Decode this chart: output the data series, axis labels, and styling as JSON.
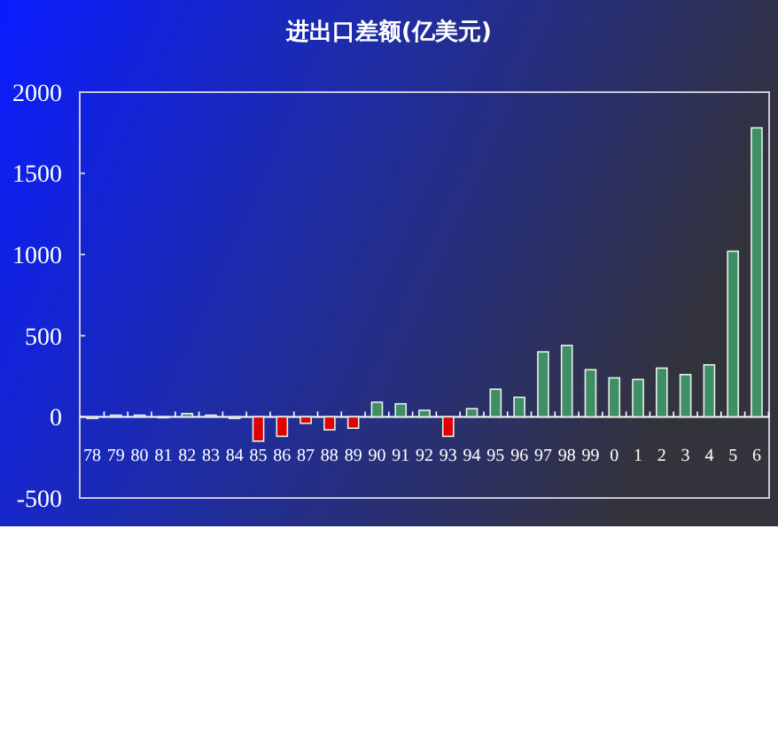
{
  "chart_data": {
    "type": "bar",
    "title": "进出口差额(亿美元)",
    "categories": [
      "78",
      "79",
      "80",
      "81",
      "82",
      "83",
      "84",
      "85",
      "86",
      "87",
      "88",
      "89",
      "90",
      "91",
      "92",
      "93",
      "94",
      "95",
      "96",
      "97",
      "98",
      "99",
      "0",
      "1",
      "2",
      "3",
      "4",
      "5",
      "6"
    ],
    "values": [
      -10,
      10,
      10,
      0,
      20,
      10,
      -10,
      -150,
      -120,
      -40,
      -80,
      -70,
      90,
      80,
      40,
      -120,
      50,
      170,
      120,
      400,
      440,
      290,
      240,
      230,
      300,
      260,
      320,
      1020,
      1780
    ],
    "colors": [
      "#3f8f66",
      "#3f8f66",
      "#3f8f66",
      "#3f8f66",
      "#3f8f66",
      "#3f8f66",
      "#3f8f66",
      "#e00000",
      "#e00000",
      "#e00000",
      "#e00000",
      "#e00000",
      "#3f8f66",
      "#3f8f66",
      "#3f8f66",
      "#e00000",
      "#3f8f66",
      "#3f8f66",
      "#3f8f66",
      "#3f8f66",
      "#3f8f66",
      "#3f8f66",
      "#3f8f66",
      "#3f8f66",
      "#3f8f66",
      "#3f8f66",
      "#3f8f66",
      "#3f8f66",
      "#3f8f66"
    ],
    "ylim": [
      -500,
      2000
    ],
    "yticks": [
      -500,
      0,
      500,
      1000,
      1500,
      2000
    ],
    "grid": false
  }
}
